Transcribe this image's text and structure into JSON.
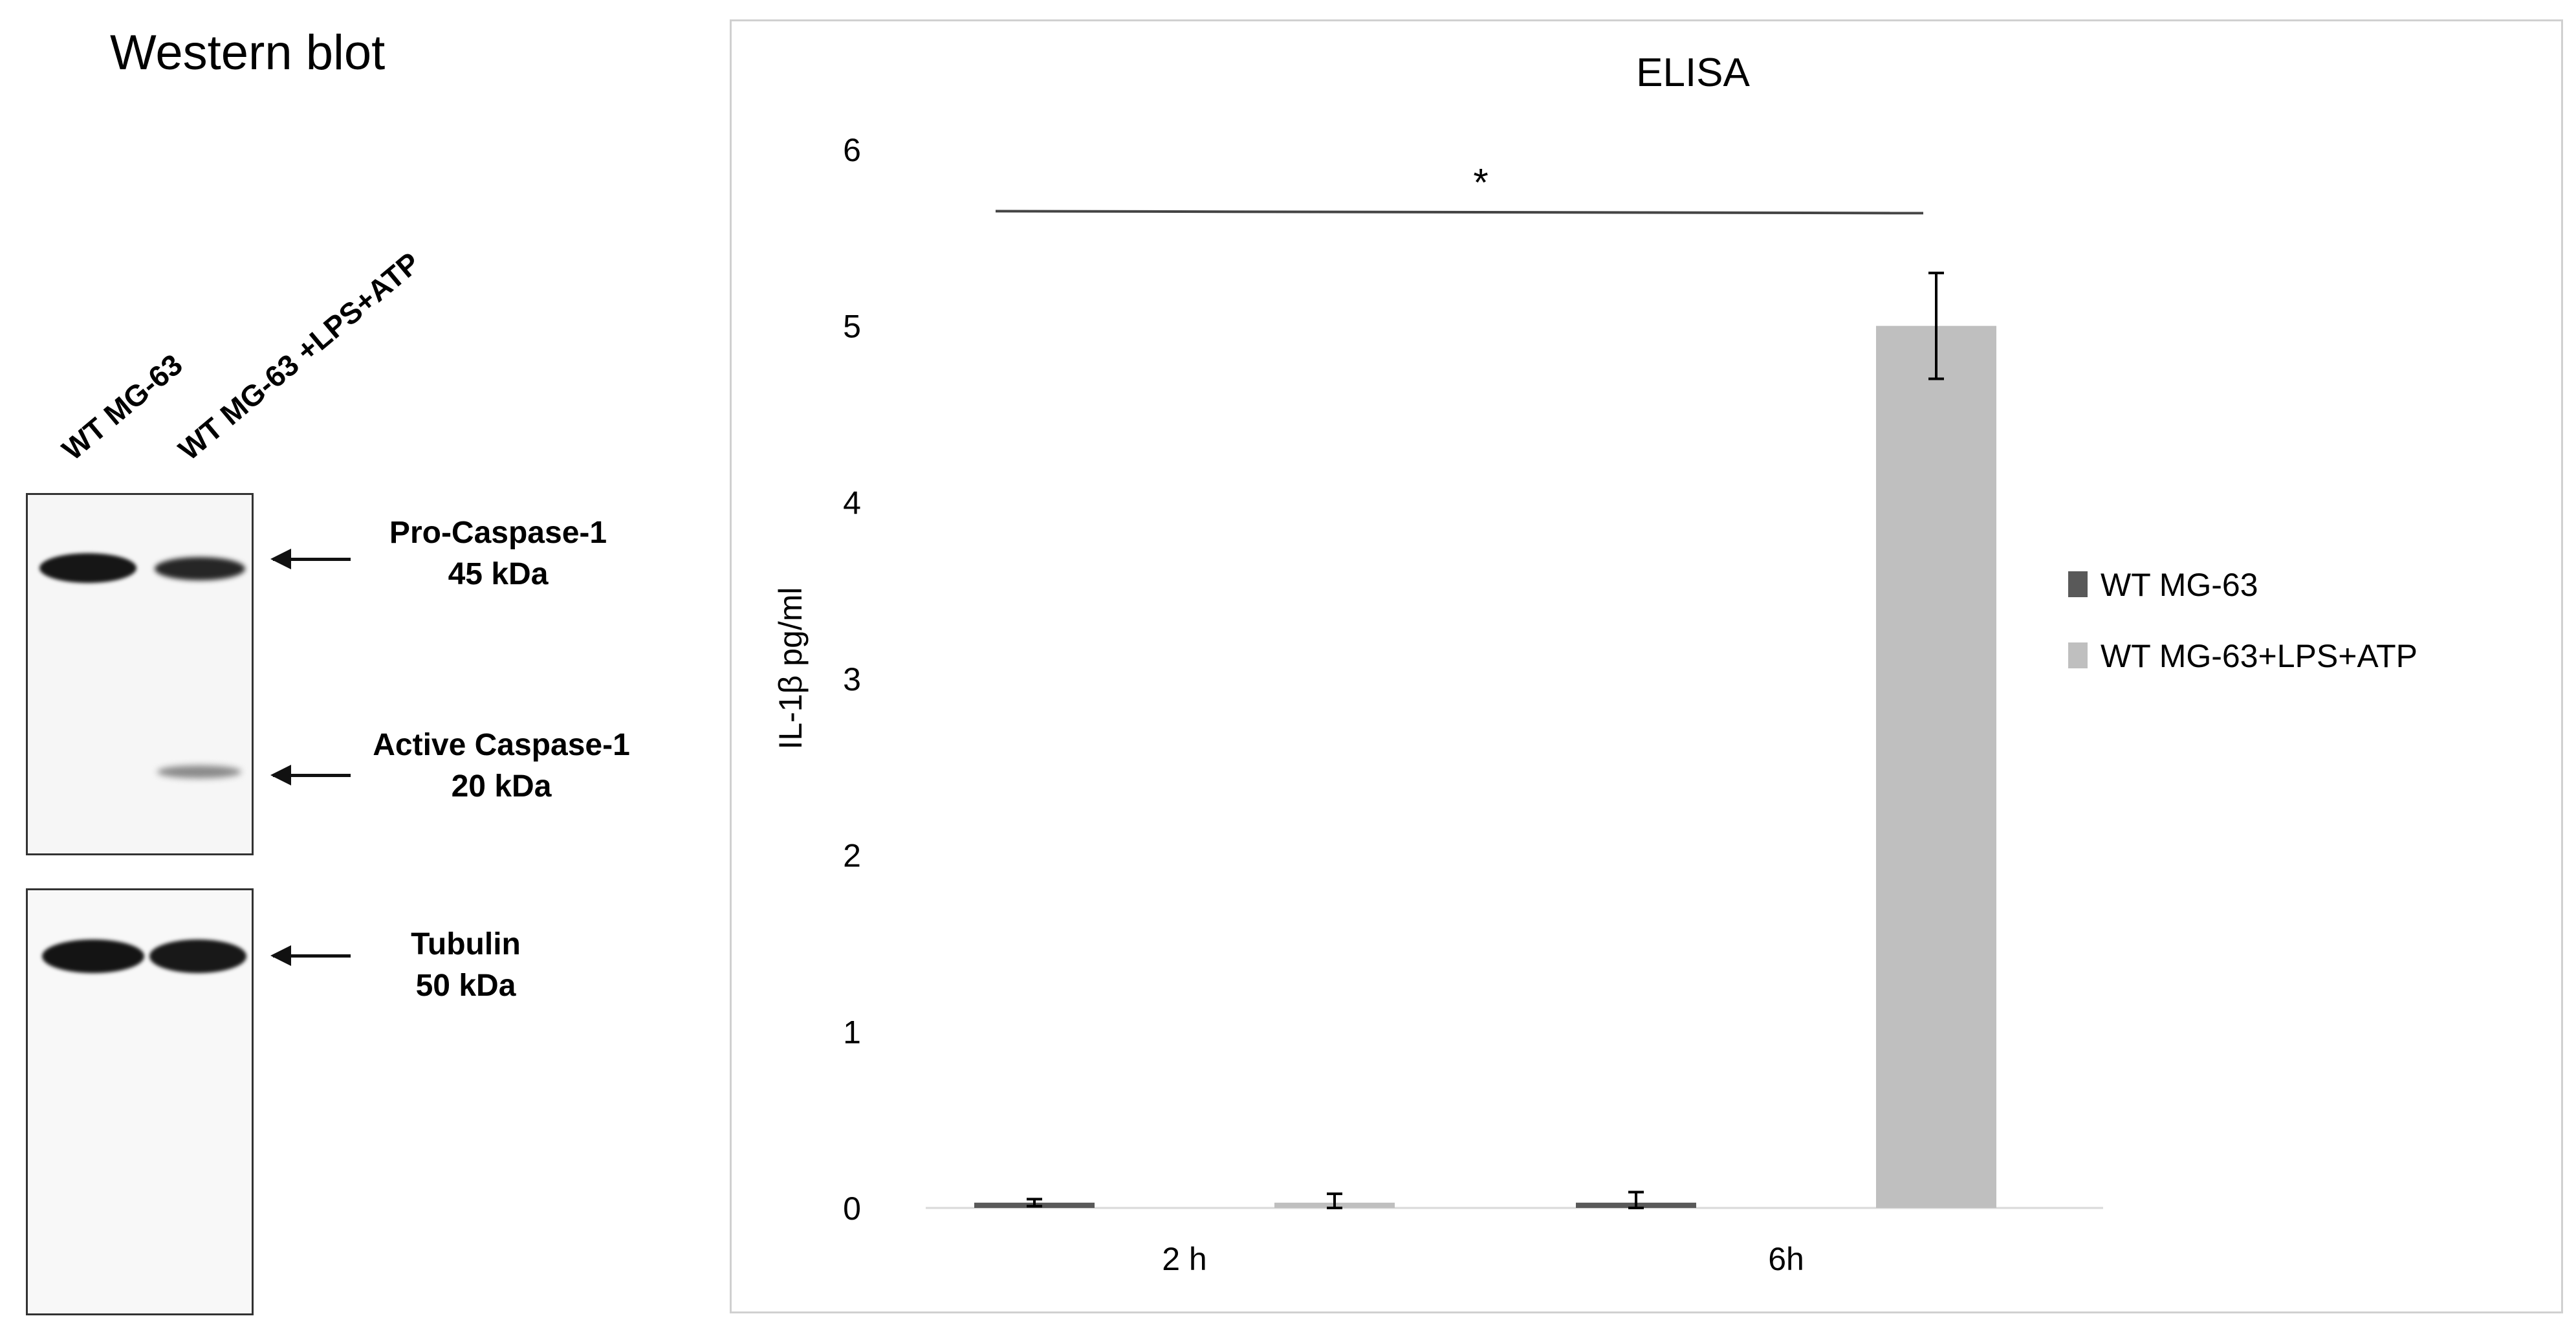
{
  "western_blot": {
    "title": "Western blot",
    "lanes": [
      "WT MG-63",
      "WT MG-63 +LPS+ATP"
    ],
    "bands": [
      {
        "name_line1": "Pro-Caspase-1",
        "name_line2": "45 kDa"
      },
      {
        "name_line1": "Active Caspase-1",
        "name_line2": "20 kDa"
      },
      {
        "name_line1": "Tubulin",
        "name_line2": "50 kDa"
      }
    ]
  },
  "chart_data": {
    "type": "bar",
    "title": "ELISA",
    "ylabel": "IL-1β  pg/ml",
    "xlabel": "",
    "ylim": [
      0,
      6
    ],
    "yticks": [
      0,
      1,
      2,
      3,
      4,
      5,
      6
    ],
    "categories": [
      "2 h",
      "6h"
    ],
    "series": [
      {
        "name": "WT MG-63",
        "color": "#595959",
        "values": [
          0.03,
          0.03
        ],
        "errors": [
          0.02,
          0.06
        ]
      },
      {
        "name": "WT MG-63+LPS+ATP",
        "color": "#bfbfbf",
        "values": [
          0.03,
          5.0
        ],
        "errors": [
          0.05,
          0.3
        ]
      }
    ],
    "significance": {
      "label": "*",
      "y": 5.65
    },
    "legend_position": "right",
    "grid": false
  }
}
